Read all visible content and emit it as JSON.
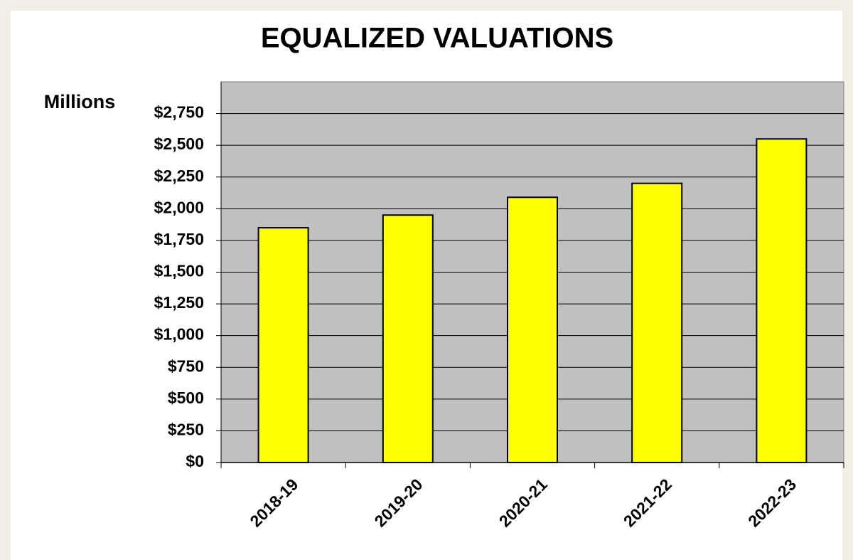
{
  "chart_data": {
    "type": "bar",
    "title": "EQUALIZED VALUATIONS",
    "y_label": "Millions",
    "categories": [
      "2018-19",
      "2019-20",
      "2020-21",
      "2021-22",
      "2022-23"
    ],
    "values": [
      1850,
      1950,
      2090,
      2200,
      2550
    ],
    "color": "#ffff00",
    "ylim": [
      0,
      3000
    ],
    "yticks": [
      {
        "value": 0,
        "label": "$0"
      },
      {
        "value": 250,
        "label": "$250"
      },
      {
        "value": 500,
        "label": "$500"
      },
      {
        "value": 750,
        "label": "$750"
      },
      {
        "value": 1000,
        "label": "$1,000"
      },
      {
        "value": 1250,
        "label": "$1,250"
      },
      {
        "value": 1500,
        "label": "$1,500"
      },
      {
        "value": 1750,
        "label": "$1,750"
      },
      {
        "value": 2000,
        "label": "$2,000"
      },
      {
        "value": 2250,
        "label": "$2,250"
      },
      {
        "value": 2500,
        "label": "$2,500"
      },
      {
        "value": 2750,
        "label": "$2,750"
      }
    ],
    "grid": true
  }
}
